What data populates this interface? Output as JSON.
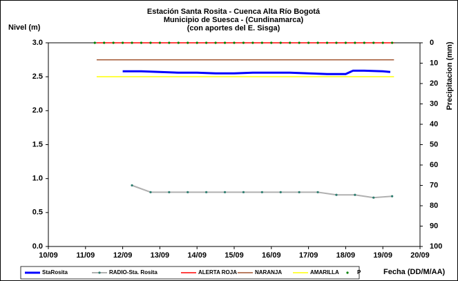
{
  "chart_data": {
    "type": "line",
    "title": [
      "Estación Santa Rosita - Cuenca Alta Río Bogotá",
      "Municipio de Suesca - (Cundinamarca)",
      "(con aportes del  E. Sisga)"
    ],
    "ylabel": "Nivel (m)",
    "y2label": "Precipitacion (mm)",
    "xlabel": "Fecha (DD/M/AA)",
    "xlim": [
      10,
      20
    ],
    "xticks": [
      {
        "value": 10,
        "label": "10/09"
      },
      {
        "value": 11,
        "label": "11/09"
      },
      {
        "value": 12,
        "label": "12/09"
      },
      {
        "value": 13,
        "label": "13/09"
      },
      {
        "value": 14,
        "label": "14/09"
      },
      {
        "value": 15,
        "label": "15/09"
      },
      {
        "value": 16,
        "label": "16/09"
      },
      {
        "value": 17,
        "label": "17/09"
      },
      {
        "value": 18,
        "label": "18/09"
      },
      {
        "value": 19,
        "label": "19/09"
      },
      {
        "value": 20,
        "label": "20/09"
      }
    ],
    "ylim": [
      0,
      3
    ],
    "yticks": [
      {
        "value": 0,
        "label": "0.0"
      },
      {
        "value": 0.5,
        "label": "0.5"
      },
      {
        "value": 1,
        "label": "1.0"
      },
      {
        "value": 1.5,
        "label": "1.5"
      },
      {
        "value": 2,
        "label": "2.0"
      },
      {
        "value": 2.5,
        "label": "2.5"
      },
      {
        "value": 3,
        "label": "3.0"
      }
    ],
    "y2lim": [
      100,
      0
    ],
    "y2ticks": [
      0,
      10,
      20,
      30,
      40,
      50,
      60,
      70,
      80,
      90,
      100
    ],
    "grid": false,
    "legend": "bottom",
    "series": [
      {
        "name": "StaRosita",
        "color": "#0000ff",
        "width": 3,
        "marker": false,
        "x": [
          12,
          12.5,
          13,
          13.5,
          14,
          14.5,
          15,
          15.5,
          16,
          16.5,
          17,
          17.5,
          18,
          18.2,
          18.5,
          19,
          19.2
        ],
        "values": [
          2.58,
          2.58,
          2.57,
          2.56,
          2.56,
          2.55,
          2.55,
          2.56,
          2.56,
          2.56,
          2.55,
          2.54,
          2.54,
          2.59,
          2.59,
          2.58,
          2.57
        ]
      },
      {
        "name": "RADIO-Sta. Rosita",
        "color": "#b0b0b0",
        "width": 2,
        "marker": true,
        "x": [
          12.25,
          12.75,
          13.25,
          13.75,
          14.25,
          14.75,
          15.25,
          15.75,
          16.25,
          16.75,
          17.25,
          17.75,
          18.25,
          18.75,
          19.25
        ],
        "values": [
          0.9,
          0.8,
          0.8,
          0.8,
          0.8,
          0.8,
          0.8,
          0.8,
          0.8,
          0.8,
          0.8,
          0.76,
          0.76,
          0.72,
          0.74
        ]
      },
      {
        "name": "ALERTA ROJA",
        "color": "#ff0000",
        "width": 1.5,
        "marker": false,
        "x": [
          11.3,
          19.3
        ],
        "values": [
          3,
          3
        ]
      },
      {
        "name": "NARANJA",
        "color": "#a0522d",
        "width": 1.5,
        "marker": false,
        "x": [
          11.3,
          19.3
        ],
        "values": [
          2.75,
          2.75
        ]
      },
      {
        "name": "AMARILLA",
        "color": "#ffff00",
        "width": 1.5,
        "marker": false,
        "x": [
          11.3,
          19.3
        ],
        "values": [
          2.5,
          2.5
        ]
      },
      {
        "name": "P",
        "color": "#008000",
        "axis": "y2",
        "line": false,
        "marker": true,
        "x": [
          11.25,
          11.5,
          11.75,
          12,
          12.25,
          12.5,
          12.75,
          13,
          13.25,
          13.5,
          13.75,
          14,
          14.25,
          14.5,
          14.75,
          15,
          15.25,
          15.5,
          15.75,
          16,
          16.25,
          16.5,
          16.75,
          17,
          17.25,
          17.5,
          17.75,
          18,
          18.25,
          18.5,
          18.75,
          19,
          19.25
        ],
        "values": [
          0,
          0,
          0,
          0,
          0,
          0,
          0,
          0,
          0,
          0,
          0,
          0,
          0,
          0,
          0,
          0,
          0,
          0,
          0,
          0,
          0,
          0,
          0,
          0,
          0,
          0,
          0,
          0,
          0,
          0,
          0,
          0,
          0
        ]
      }
    ]
  }
}
